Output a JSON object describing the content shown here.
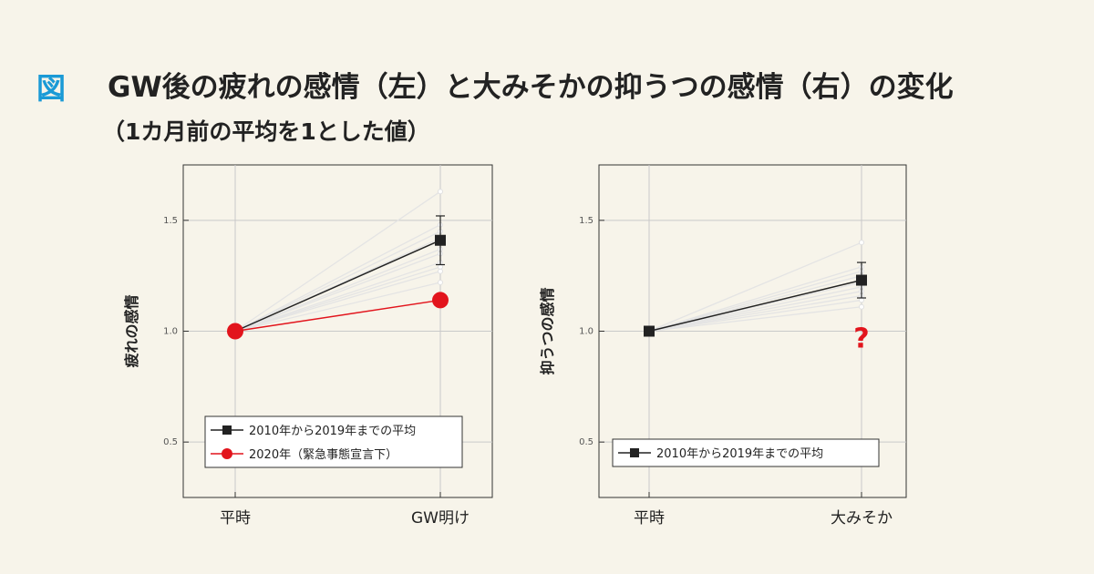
{
  "header": {
    "figure_label": "図",
    "title": "GW後の疲れの感情（左）と大みそかの抑うつの感情（右）の変化",
    "subtitle": "（1カ月前の平均を1とした値）"
  },
  "colors": {
    "accent_blue": "#1a9ad6",
    "series_avg": "#222222",
    "series_2020": "#e2141c",
    "individual_years": "#e4e4e4",
    "background": "#f7f4ea"
  },
  "chart_data": [
    {
      "type": "line",
      "title": "GW後の疲れの感情",
      "xlabel": "",
      "ylabel": "疲れの感情",
      "categories": [
        "平時",
        "GW明け"
      ],
      "ylim": [
        0.25,
        1.75
      ],
      "yticks": [
        0.5,
        1.0,
        1.5
      ],
      "ytick_labels": [
        "0.5",
        "1.0",
        "1.5"
      ],
      "grid": true,
      "individual_years": [
        [
          1.0,
          1.63
        ],
        [
          1.0,
          1.48
        ],
        [
          1.0,
          1.45
        ],
        [
          1.0,
          1.42
        ],
        [
          1.0,
          1.37
        ],
        [
          1.0,
          1.35
        ],
        [
          1.0,
          1.31
        ],
        [
          1.0,
          1.29
        ],
        [
          1.0,
          1.27
        ],
        [
          1.0,
          1.22
        ]
      ],
      "series": [
        {
          "name": "2010年から2019年までの平均",
          "values": [
            1.0,
            1.41
          ],
          "error": [
            0,
            0.11
          ],
          "marker": "square",
          "color": "#222222"
        },
        {
          "name": "2020年（緊急事態宣言下）",
          "values": [
            1.0,
            1.14
          ],
          "marker": "circle",
          "color": "#e2141c"
        }
      ],
      "legend": {
        "placement": "bottom",
        "entries": [
          "2010年から2019年までの平均",
          "2020年（緊急事態宣言下）"
        ]
      }
    },
    {
      "type": "line",
      "title": "大みそかの抑うつの感情",
      "xlabel": "",
      "ylabel": "抑うつの感情",
      "categories": [
        "平時",
        "大みそか"
      ],
      "ylim": [
        0.25,
        1.75
      ],
      "yticks": [
        0.5,
        1.0,
        1.5
      ],
      "ytick_labels": [
        "0.5",
        "1.0",
        "1.5"
      ],
      "grid": true,
      "individual_years": [
        [
          1.0,
          1.4
        ],
        [
          1.0,
          1.29
        ],
        [
          1.0,
          1.27
        ],
        [
          1.0,
          1.25
        ],
        [
          1.0,
          1.22
        ],
        [
          1.0,
          1.2
        ],
        [
          1.0,
          1.18
        ],
        [
          1.0,
          1.16
        ],
        [
          1.0,
          1.14
        ],
        [
          1.0,
          1.11
        ]
      ],
      "series": [
        {
          "name": "2010年から2019年までの平均",
          "values": [
            1.0,
            1.23
          ],
          "error": [
            0,
            0.08
          ],
          "marker": "square",
          "color": "#222222"
        }
      ],
      "annotation": "?",
      "legend": {
        "placement": "bottom",
        "entries": [
          "2010年から2019年までの平均"
        ]
      }
    }
  ]
}
